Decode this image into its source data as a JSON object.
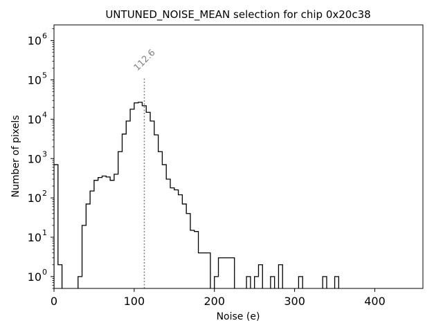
{
  "chart_data": {
    "type": "histogram",
    "title": "UNTUNED_NOISE_MEAN selection for chip 0x20c38",
    "xlabel": "Noise (e)",
    "ylabel": "Number of pixels",
    "xlim": [
      0,
      460
    ],
    "ylim": [
      0.5,
      2500000
    ],
    "yscale": "log",
    "xticks": [
      0,
      100,
      200,
      300,
      400
    ],
    "xtick_labels": [
      "0",
      "100",
      "200",
      "300",
      "400"
    ],
    "yticks": [
      1,
      10,
      100,
      1000,
      10000,
      100000,
      1000000
    ],
    "ytick_labels": [
      {
        "base": "10",
        "exp": "0"
      },
      {
        "base": "10",
        "exp": "1"
      },
      {
        "base": "10",
        "exp": "2"
      },
      {
        "base": "10",
        "exp": "3"
      },
      {
        "base": "10",
        "exp": "4"
      },
      {
        "base": "10",
        "exp": "5"
      },
      {
        "base": "10",
        "exp": "6"
      }
    ],
    "bin_width": 5,
    "bins_start": [
      0,
      5,
      10,
      15,
      20,
      25,
      30,
      35,
      40,
      45,
      50,
      55,
      60,
      65,
      70,
      75,
      80,
      85,
      90,
      95,
      100,
      105,
      110,
      115,
      120,
      125,
      130,
      135,
      140,
      145,
      150,
      155,
      160,
      165,
      170,
      175,
      180,
      185,
      190,
      195,
      200,
      205,
      210,
      215,
      220,
      225,
      230,
      235,
      240,
      245,
      250,
      255,
      260,
      265,
      270,
      275,
      280,
      285,
      290,
      295,
      300,
      305,
      310,
      315,
      320,
      325,
      330,
      335,
      340,
      345,
      350,
      355
    ],
    "counts": [
      700,
      2,
      0,
      0,
      0,
      0,
      1,
      20,
      70,
      150,
      280,
      330,
      360,
      340,
      280,
      400,
      1500,
      4200,
      9000,
      18000,
      26000,
      27000,
      22000,
      15000,
      9000,
      4000,
      1500,
      700,
      300,
      180,
      160,
      120,
      70,
      40,
      15,
      14,
      4,
      4,
      4,
      0,
      1,
      3,
      3,
      3,
      3,
      0,
      0,
      0,
      1,
      0,
      1,
      2,
      0,
      0,
      1,
      0,
      2,
      0,
      0,
      0,
      0,
      1,
      0,
      0,
      0,
      0,
      0,
      1,
      0,
      0,
      1,
      0
    ],
    "annotation": {
      "x": 112.6,
      "y_top": 120000,
      "label": "112.6"
    },
    "line_color": "#000000",
    "annotation_color": "#808080",
    "grid": false,
    "legend": "none"
  }
}
